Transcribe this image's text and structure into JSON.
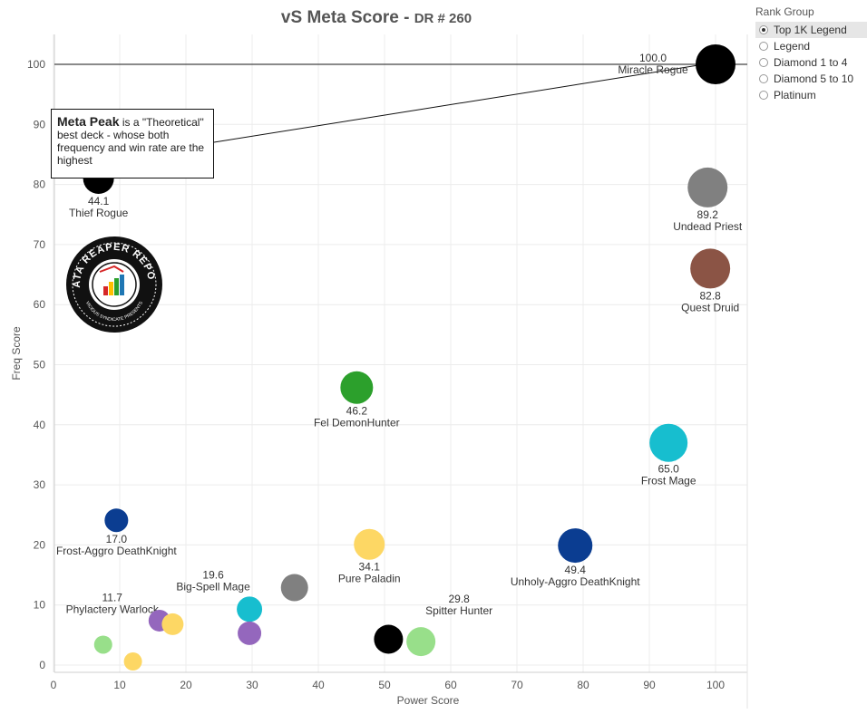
{
  "title": {
    "main": "vS Meta Score -",
    "sub": "DR # 260"
  },
  "legend": {
    "title": "Rank Group",
    "items": [
      "Top 1K Legend",
      "Legend",
      "Diamond 1 to 4",
      "Diamond 5 to 10",
      "Platinum"
    ],
    "selected": "Top 1K Legend"
  },
  "callout": {
    "bold": "Meta Peak",
    "text": " is a \"Theoretical\" best deck - whose both frequency and win rate are the highest"
  },
  "logo": {
    "text_top": "DATA REAPER REPORT",
    "text_bottom": "VICIOUS SYNDICATE PRESENTS"
  },
  "chart_data": {
    "type": "scatter",
    "title": "vS Meta Score - DR # 260",
    "xlabel": "Power Score",
    "ylabel": "Freq Score",
    "xlim": [
      0,
      105
    ],
    "ylim": [
      -1,
      105
    ],
    "xticks": [
      0,
      10,
      20,
      30,
      40,
      50,
      60,
      70,
      80,
      90,
      100
    ],
    "yticks": [
      0,
      10,
      20,
      30,
      40,
      50,
      60,
      70,
      80,
      90,
      100
    ],
    "reference_line_y": 100,
    "grid": true,
    "points": [
      {
        "name": "Miracle Rogue",
        "score": "100.0",
        "x": 100,
        "y": 100,
        "color": "#000000",
        "size": 22,
        "label": "above-left"
      },
      {
        "name": "Thief Rogue",
        "score": "44.1",
        "x": 6.8,
        "y": 81,
        "color": "#000000",
        "size": 17,
        "label": "below"
      },
      {
        "name": "Undead Priest",
        "score": "89.2",
        "x": 98.8,
        "y": 79.5,
        "color": "#808080",
        "size": 22,
        "label": "below"
      },
      {
        "name": "Quest Druid",
        "score": "82.8",
        "x": 99.2,
        "y": 66,
        "color": "#8b5445",
        "size": 22,
        "label": "below"
      },
      {
        "name": "Fel DemonHunter",
        "score": "46.2",
        "x": 45.8,
        "y": 46.2,
        "color": "#2ca02c",
        "size": 18,
        "label": "below"
      },
      {
        "name": "Frost Mage",
        "score": "65.0",
        "x": 92.9,
        "y": 37,
        "color": "#17becf",
        "size": 21,
        "label": "below"
      },
      {
        "name": "Frost-Aggro DeathKnight",
        "score": "17.0",
        "x": 9.5,
        "y": 24.1,
        "color": "#0b3d91",
        "size": 13,
        "label": "below"
      },
      {
        "name": "Pure Paladin",
        "score": "34.1",
        "x": 47.7,
        "y": 20.1,
        "color": "#fdd764",
        "size": 17,
        "label": "below"
      },
      {
        "name": "Unholy-Aggro DeathKnight",
        "score": "49.4",
        "x": 78.8,
        "y": 19.9,
        "color": "#0b3d91",
        "size": 19,
        "label": "below"
      },
      {
        "name": "Big-Spell Mage",
        "score": "19.6",
        "x": 29.6,
        "y": 9.3,
        "color": "#17becf",
        "size": 14,
        "label": "above-left"
      },
      {
        "name": "Phylactery Warlock",
        "score": "11.7",
        "x": 7.5,
        "y": 3.4,
        "color": "#98df8a",
        "size": 10,
        "label": "above"
      },
      {
        "name": "Spitter Hunter",
        "score": "29.8",
        "x": 55.5,
        "y": 3.9,
        "color": "#98df8a",
        "size": 16,
        "label": "above-right"
      },
      {
        "name": "",
        "score": "",
        "x": 36.4,
        "y": 12.9,
        "color": "#808080",
        "size": 15,
        "label": "none"
      },
      {
        "name": "",
        "score": "",
        "x": 16.0,
        "y": 7.4,
        "color": "#9467bd",
        "size": 12,
        "label": "none"
      },
      {
        "name": "",
        "score": "",
        "x": 18.0,
        "y": 6.8,
        "color": "#fdd764",
        "size": 12,
        "label": "none"
      },
      {
        "name": "",
        "score": "",
        "x": 29.6,
        "y": 5.3,
        "color": "#9467bd",
        "size": 13,
        "label": "none"
      },
      {
        "name": "",
        "score": "",
        "x": 50.6,
        "y": 4.3,
        "color": "#000000",
        "size": 16,
        "label": "none"
      },
      {
        "name": "",
        "score": "",
        "x": 12.0,
        "y": 0.6,
        "color": "#fdd764",
        "size": 10,
        "label": "none"
      }
    ]
  }
}
